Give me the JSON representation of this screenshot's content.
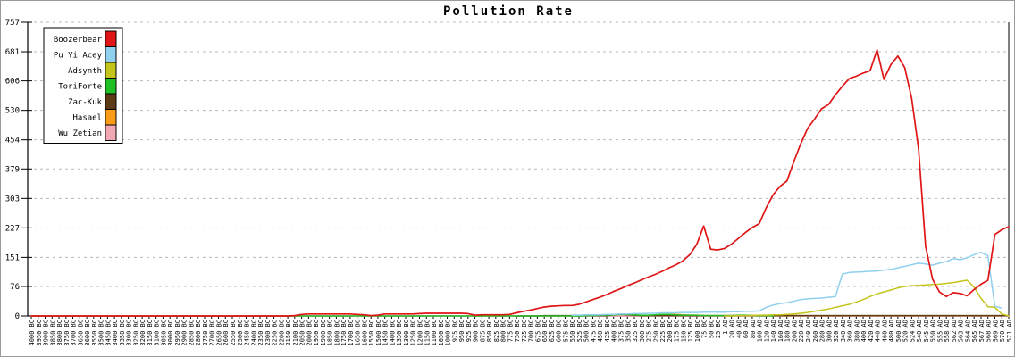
{
  "chart_data": {
    "type": "line",
    "title": "Pollution Rate",
    "xlabel": "",
    "ylabel": "",
    "ylim": [
      0,
      757
    ],
    "y_ticks": [
      0,
      76,
      151,
      227,
      303,
      379,
      454,
      530,
      606,
      681,
      757
    ],
    "grid": "horizontal-dashed",
    "grid_color": "#b8b8b8",
    "axis_color": "#000000",
    "background_color": "#ffffff",
    "legend_position": "top-left",
    "x_labels": [
      "4000 BC",
      "3950 BC",
      "3900 BC",
      "3850 BC",
      "3800 BC",
      "3750 BC",
      "3700 BC",
      "3650 BC",
      "3600 BC",
      "3550 BC",
      "3500 BC",
      "3450 BC",
      "3400 BC",
      "3350 BC",
      "3300 BC",
      "3250 BC",
      "3200 BC",
      "3150 BC",
      "3100 BC",
      "3050 BC",
      "3000 BC",
      "2950 BC",
      "2900 BC",
      "2850 BC",
      "2800 BC",
      "2750 BC",
      "2700 BC",
      "2650 BC",
      "2600 BC",
      "2550 BC",
      "2500 BC",
      "2450 BC",
      "2400 BC",
      "2350 BC",
      "2300 BC",
      "2250 BC",
      "2200 BC",
      "2150 BC",
      "2100 BC",
      "2050 BC",
      "2000 BC",
      "1950 BC",
      "1900 BC",
      "1850 BC",
      "1800 BC",
      "1750 BC",
      "1700 BC",
      "1650 BC",
      "1600 BC",
      "1550 BC",
      "1500 BC",
      "1450 BC",
      "1400 BC",
      "1350 BC",
      "1300 BC",
      "1250 BC",
      "1200 BC",
      "1150 BC",
      "1100 BC",
      "1050 BC",
      "1000 BC",
      "975 BC",
      "950 BC",
      "925 BC",
      "900 BC",
      "875 BC",
      "850 BC",
      "825 BC",
      "800 BC",
      "775 BC",
      "750 BC",
      "725 BC",
      "700 BC",
      "675 BC",
      "650 BC",
      "625 BC",
      "600 BC",
      "575 BC",
      "550 BC",
      "525 BC",
      "500 BC",
      "475 BC",
      "450 BC",
      "425 BC",
      "400 BC",
      "375 BC",
      "350 BC",
      "325 BC",
      "300 BC",
      "275 BC",
      "250 BC",
      "225 BC",
      "200 BC",
      "175 BC",
      "150 BC",
      "125 BC",
      "100 BC",
      "75 BC",
      "50 BC",
      "25 BC",
      "1 AD",
      "20 AD",
      "40 AD",
      "60 AD",
      "80 AD",
      "100 AD",
      "120 AD",
      "140 AD",
      "160 AD",
      "180 AD",
      "200 AD",
      "220 AD",
      "240 AD",
      "260 AD",
      "280 AD",
      "300 AD",
      "320 AD",
      "340 AD",
      "360 AD",
      "380 AD",
      "400 AD",
      "420 AD",
      "440 AD",
      "460 AD",
      "480 AD",
      "500 AD",
      "520 AD",
      "524 AD",
      "540 AD",
      "545 AD",
      "550 AD",
      "555 AD",
      "558 AD",
      "562 AD",
      "563 AD",
      "564 AD",
      "565 AD",
      "567 AD",
      "568 AD",
      "569 AD",
      "570 AD",
      "571 AD"
    ],
    "series": [
      {
        "name": "Boozerbear",
        "color": "#e01515",
        "start": 0,
        "values": [
          0,
          0,
          0,
          0,
          0,
          0,
          0,
          0,
          0,
          0,
          0,
          0,
          0,
          0,
          0,
          0,
          0,
          0,
          0,
          0,
          0,
          0,
          0,
          0,
          0,
          0,
          0,
          0,
          0,
          0,
          0,
          0,
          0,
          0,
          0,
          0,
          0,
          0,
          1,
          4,
          5,
          5,
          5,
          5,
          5,
          5,
          5,
          4,
          3,
          1,
          2,
          5,
          5,
          5,
          5,
          5,
          6,
          7,
          7,
          7,
          7,
          7,
          7,
          6,
          2,
          3,
          3,
          3,
          3,
          4,
          8,
          12,
          15,
          19,
          23,
          25,
          26,
          27,
          27,
          30,
          36,
          42,
          48,
          55,
          63,
          70,
          78,
          85,
          93,
          100,
          107,
          115,
          124,
          132,
          142,
          158,
          185,
          232,
          172,
          170,
          174,
          185,
          200,
          215,
          228,
          238,
          278,
          312,
          334,
          348,
          398,
          444,
          484,
          508,
          534,
          545,
          570,
          592,
          612,
          618,
          626,
          632,
          686,
          610,
          648,
          670,
          640,
          560,
          430,
          180,
          95,
          62,
          50,
          60,
          58,
          52,
          68,
          82,
          92,
          210,
          222,
          230
        ]
      },
      {
        "name": "Pu Yi Acey",
        "color": "#8fd0ee",
        "start": 78,
        "values": [
          2,
          2,
          3,
          3,
          3,
          4,
          4,
          5,
          5,
          6,
          6,
          7,
          7,
          8,
          8,
          8,
          9,
          9,
          9,
          10,
          10,
          10,
          10,
          11,
          11,
          12,
          12,
          13,
          22,
          28,
          32,
          34,
          38,
          42,
          44,
          45,
          46,
          48,
          50,
          108,
          112,
          113,
          114,
          115,
          116,
          118,
          120,
          124,
          128,
          132,
          136,
          134,
          131,
          136,
          140,
          148,
          145,
          150,
          158,
          164,
          155,
          25,
          20
        ]
      },
      {
        "name": "Adsynth",
        "color": "#c4c41a",
        "start": 100,
        "values": [
          0,
          0,
          1,
          1,
          1,
          2,
          2,
          3,
          3,
          4,
          5,
          7,
          9,
          12,
          15,
          18,
          22,
          26,
          30,
          36,
          42,
          50,
          57,
          62,
          67,
          72,
          76,
          78,
          79,
          80,
          81,
          82,
          84,
          86,
          89,
          92,
          74,
          45,
          24,
          22,
          5,
          0
        ]
      },
      {
        "name": "ToriForte",
        "color": "#1fc025",
        "start": 0,
        "values": [
          0,
          0,
          0,
          0,
          0,
          0,
          0,
          0,
          0,
          0,
          0,
          0,
          0,
          0,
          0,
          0,
          0,
          0,
          0,
          0,
          0,
          0,
          0,
          0,
          0,
          0,
          0,
          0,
          0,
          0,
          0,
          0,
          0,
          0,
          0,
          0,
          0,
          0,
          0,
          0,
          0,
          0,
          0,
          0,
          0,
          0,
          0,
          0,
          0,
          0,
          0,
          0,
          0,
          0,
          0,
          0,
          0,
          0,
          0,
          0,
          0,
          0,
          0,
          0,
          0,
          0,
          0,
          0,
          0,
          0,
          0,
          0,
          0,
          0,
          0,
          0,
          0,
          0,
          0,
          0,
          1,
          1,
          2,
          2,
          3,
          4,
          4,
          3,
          2,
          2,
          3,
          4,
          4,
          3,
          2,
          2,
          2,
          1,
          1,
          1,
          1,
          1,
          2,
          2,
          1,
          1,
          1,
          0
        ]
      },
      {
        "name": "Zac-Kuk",
        "color": "#5c3a14",
        "start": 70,
        "values": [
          0,
          0,
          0,
          0,
          1,
          1,
          1,
          1,
          1,
          1,
          1,
          1,
          1,
          1,
          3,
          4,
          3,
          2,
          1,
          1,
          1,
          1,
          1,
          1,
          1,
          1,
          1,
          1,
          1,
          1,
          1,
          1,
          1,
          1,
          1,
          1,
          1,
          1,
          1,
          1,
          1,
          1,
          1,
          1,
          1,
          1,
          1,
          1,
          1,
          1,
          1,
          1,
          1,
          1,
          1,
          1,
          1,
          1,
          1,
          1,
          1,
          1,
          1,
          1,
          1,
          1,
          1,
          1,
          1,
          1,
          1,
          1
        ]
      },
      {
        "name": "Hasael",
        "color": "#fb9c18",
        "start": 88,
        "values": [
          1,
          1,
          2,
          3,
          4,
          4,
          3,
          2,
          2,
          1,
          1,
          1,
          1,
          1,
          1,
          1,
          1,
          1,
          1,
          1,
          1,
          1,
          1,
          1,
          1,
          1,
          1,
          1,
          1,
          1,
          1,
          1,
          1,
          1,
          1,
          1,
          1,
          1,
          1,
          1,
          1,
          1,
          1,
          1,
          1,
          1,
          1,
          1,
          1,
          1,
          1,
          1,
          1,
          1
        ]
      },
      {
        "name": "Wu Zetian",
        "color": "#f2a8b4",
        "start": 0,
        "values": [
          0,
          0,
          0,
          0,
          0,
          0,
          0,
          0,
          0,
          0,
          0,
          0,
          0,
          0,
          0,
          0,
          0,
          0,
          0,
          0,
          0,
          0,
          0,
          0,
          0,
          0,
          0,
          0,
          0,
          0,
          0,
          0,
          0,
          0,
          0,
          0,
          0,
          0,
          0,
          0,
          0,
          0,
          0,
          0,
          0,
          0,
          0,
          0,
          0,
          0,
          0,
          0,
          0,
          0,
          0,
          0,
          0,
          0,
          0,
          0,
          0,
          0,
          0,
          0,
          0,
          0,
          0,
          0,
          0,
          0,
          0,
          0,
          0,
          0,
          0,
          0,
          0,
          0,
          0,
          0,
          0,
          0,
          0,
          0,
          0,
          0,
          0,
          0,
          0,
          0,
          0,
          0,
          0,
          0,
          0,
          0,
          0,
          0,
          0,
          0,
          0,
          0,
          0,
          0,
          0,
          0,
          0,
          0,
          0,
          0,
          0,
          0,
          0,
          0,
          0,
          0,
          0,
          0,
          0,
          0,
          0,
          0,
          0,
          0,
          0,
          0,
          0,
          0,
          0,
          0,
          0,
          0,
          0,
          0,
          0,
          0,
          0,
          0,
          0,
          0,
          0,
          0
        ]
      }
    ]
  }
}
